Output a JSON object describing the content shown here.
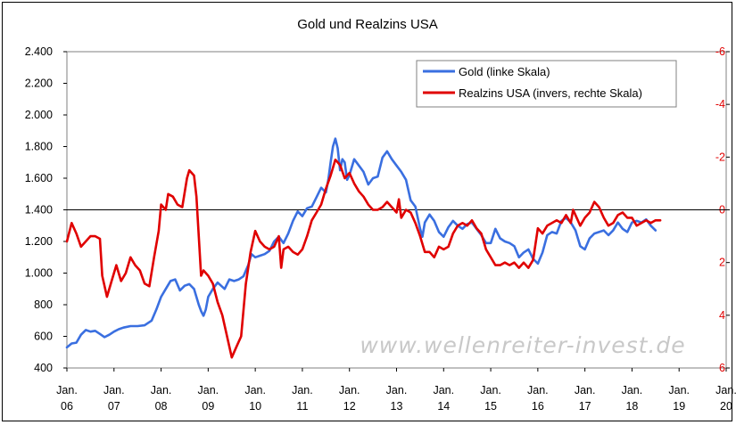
{
  "chart_data": {
    "type": "line",
    "title": "Gold und Realzins USA",
    "watermark": "www.wellenreiter-invest.de",
    "x_ticks": [
      {
        "top": "Jan.",
        "bottom": "06",
        "year": 2006
      },
      {
        "top": "Jan.",
        "bottom": "07",
        "year": 2007
      },
      {
        "top": "Jan.",
        "bottom": "08",
        "year": 2008
      },
      {
        "top": "Jan.",
        "bottom": "09",
        "year": 2009
      },
      {
        "top": "Jan.",
        "bottom": "10",
        "year": 2010
      },
      {
        "top": "Jan.",
        "bottom": "11",
        "year": 2011
      },
      {
        "top": "Jan.",
        "bottom": "12",
        "year": 2012
      },
      {
        "top": "Jan.",
        "bottom": "13",
        "year": 2013
      },
      {
        "top": "Jan.",
        "bottom": "14",
        "year": 2014
      },
      {
        "top": "Jan.",
        "bottom": "15",
        "year": 2015
      },
      {
        "top": "Jan.",
        "bottom": "16",
        "year": 2016
      },
      {
        "top": "Jan.",
        "bottom": "17",
        "year": 2017
      },
      {
        "top": "Jan.",
        "bottom": "18",
        "year": 2018
      },
      {
        "top": "Jan.",
        "bottom": "19",
        "year": 2019
      },
      {
        "top": "Jan.",
        "bottom": "20",
        "year": 2020
      }
    ],
    "x_range": [
      2006,
      2020
    ],
    "left_axis": {
      "range": [
        400,
        2400
      ],
      "ticks": [
        400,
        600,
        800,
        1000,
        1200,
        1400,
        1600,
        1800,
        2000,
        2200,
        2400
      ],
      "tick_labels": [
        "400",
        "600",
        "800",
        "1.000",
        "1.200",
        "1.400",
        "1.600",
        "1.800",
        "2.000",
        "2.200",
        "2.400"
      ]
    },
    "right_axis": {
      "inverted": true,
      "range": [
        6,
        -6
      ],
      "ticks": [
        6,
        4,
        2,
        0,
        -2,
        -4,
        -6
      ],
      "tick_labels": [
        "6",
        "4",
        "2",
        "0",
        "-2",
        "-4",
        "-6"
      ],
      "color": "#e00000"
    },
    "zero_line_right": 0,
    "grid": false,
    "legend_position": "top-right",
    "series": [
      {
        "name": "Gold (linke Skala)",
        "axis": "left",
        "color": "#3a6fe0",
        "points": [
          [
            2006.0,
            530
          ],
          [
            2006.1,
            555
          ],
          [
            2006.2,
            560
          ],
          [
            2006.3,
            610
          ],
          [
            2006.4,
            640
          ],
          [
            2006.5,
            630
          ],
          [
            2006.6,
            635
          ],
          [
            2006.7,
            615
          ],
          [
            2006.8,
            595
          ],
          [
            2006.9,
            610
          ],
          [
            2007.0,
            630
          ],
          [
            2007.1,
            645
          ],
          [
            2007.2,
            655
          ],
          [
            2007.35,
            665
          ],
          [
            2007.5,
            665
          ],
          [
            2007.65,
            670
          ],
          [
            2007.8,
            700
          ],
          [
            2007.9,
            770
          ],
          [
            2008.0,
            850
          ],
          [
            2008.1,
            900
          ],
          [
            2008.2,
            950
          ],
          [
            2008.3,
            960
          ],
          [
            2008.4,
            890
          ],
          [
            2008.5,
            920
          ],
          [
            2008.6,
            930
          ],
          [
            2008.7,
            900
          ],
          [
            2008.8,
            800
          ],
          [
            2008.85,
            760
          ],
          [
            2008.9,
            730
          ],
          [
            2008.95,
            770
          ],
          [
            2009.0,
            850
          ],
          [
            2009.1,
            900
          ],
          [
            2009.2,
            940
          ],
          [
            2009.35,
            900
          ],
          [
            2009.45,
            960
          ],
          [
            2009.55,
            950
          ],
          [
            2009.65,
            960
          ],
          [
            2009.75,
            980
          ],
          [
            2009.85,
            1050
          ],
          [
            2009.92,
            1120
          ],
          [
            2010.0,
            1100
          ],
          [
            2010.1,
            1110
          ],
          [
            2010.2,
            1120
          ],
          [
            2010.3,
            1140
          ],
          [
            2010.4,
            1200
          ],
          [
            2010.5,
            1230
          ],
          [
            2010.6,
            1190
          ],
          [
            2010.7,
            1250
          ],
          [
            2010.8,
            1330
          ],
          [
            2010.9,
            1390
          ],
          [
            2011.0,
            1360
          ],
          [
            2011.1,
            1410
          ],
          [
            2011.2,
            1420
          ],
          [
            2011.3,
            1480
          ],
          [
            2011.4,
            1540
          ],
          [
            2011.5,
            1510
          ],
          [
            2011.55,
            1590
          ],
          [
            2011.6,
            1700
          ],
          [
            2011.65,
            1800
          ],
          [
            2011.7,
            1850
          ],
          [
            2011.75,
            1790
          ],
          [
            2011.8,
            1650
          ],
          [
            2011.85,
            1720
          ],
          [
            2011.9,
            1700
          ],
          [
            2011.95,
            1590
          ],
          [
            2012.0,
            1620
          ],
          [
            2012.1,
            1720
          ],
          [
            2012.2,
            1680
          ],
          [
            2012.3,
            1640
          ],
          [
            2012.4,
            1560
          ],
          [
            2012.5,
            1600
          ],
          [
            2012.6,
            1610
          ],
          [
            2012.7,
            1730
          ],
          [
            2012.8,
            1770
          ],
          [
            2012.9,
            1720
          ],
          [
            2013.0,
            1680
          ],
          [
            2013.1,
            1640
          ],
          [
            2013.2,
            1590
          ],
          [
            2013.3,
            1460
          ],
          [
            2013.4,
            1420
          ],
          [
            2013.5,
            1280
          ],
          [
            2013.55,
            1230
          ],
          [
            2013.6,
            1320
          ],
          [
            2013.7,
            1370
          ],
          [
            2013.8,
            1330
          ],
          [
            2013.9,
            1260
          ],
          [
            2014.0,
            1230
          ],
          [
            2014.1,
            1290
          ],
          [
            2014.2,
            1330
          ],
          [
            2014.3,
            1300
          ],
          [
            2014.4,
            1280
          ],
          [
            2014.5,
            1310
          ],
          [
            2014.6,
            1320
          ],
          [
            2014.7,
            1280
          ],
          [
            2014.8,
            1240
          ],
          [
            2014.9,
            1190
          ],
          [
            2015.0,
            1190
          ],
          [
            2015.1,
            1280
          ],
          [
            2015.2,
            1220
          ],
          [
            2015.3,
            1200
          ],
          [
            2015.4,
            1190
          ],
          [
            2015.5,
            1170
          ],
          [
            2015.6,
            1100
          ],
          [
            2015.7,
            1130
          ],
          [
            2015.8,
            1150
          ],
          [
            2015.9,
            1090
          ],
          [
            2016.0,
            1060
          ],
          [
            2016.1,
            1130
          ],
          [
            2016.2,
            1240
          ],
          [
            2016.3,
            1260
          ],
          [
            2016.4,
            1250
          ],
          [
            2016.5,
            1330
          ],
          [
            2016.6,
            1350
          ],
          [
            2016.7,
            1320
          ],
          [
            2016.8,
            1270
          ],
          [
            2016.9,
            1170
          ],
          [
            2017.0,
            1150
          ],
          [
            2017.1,
            1220
          ],
          [
            2017.2,
            1250
          ],
          [
            2017.3,
            1260
          ],
          [
            2017.4,
            1270
          ],
          [
            2017.5,
            1240
          ],
          [
            2017.6,
            1270
          ],
          [
            2017.7,
            1320
          ],
          [
            2017.8,
            1280
          ],
          [
            2017.9,
            1260
          ],
          [
            2018.0,
            1320
          ],
          [
            2018.1,
            1330
          ],
          [
            2018.2,
            1320
          ],
          [
            2018.3,
            1340
          ],
          [
            2018.4,
            1300
          ],
          [
            2018.5,
            1270
          ]
        ]
      },
      {
        "name": "Realzins USA (invers, rechte Skala)",
        "axis": "right",
        "color": "#e00000",
        "points": [
          [
            2006.0,
            1.2
          ],
          [
            2006.1,
            0.5
          ],
          [
            2006.2,
            0.9
          ],
          [
            2006.3,
            1.4
          ],
          [
            2006.4,
            1.2
          ],
          [
            2006.5,
            1.0
          ],
          [
            2006.6,
            1.0
          ],
          [
            2006.7,
            1.1
          ],
          [
            2006.75,
            2.5
          ],
          [
            2006.85,
            3.3
          ],
          [
            2006.95,
            2.7
          ],
          [
            2007.05,
            2.1
          ],
          [
            2007.15,
            2.7
          ],
          [
            2007.25,
            2.4
          ],
          [
            2007.35,
            1.8
          ],
          [
            2007.45,
            2.1
          ],
          [
            2007.55,
            2.3
          ],
          [
            2007.65,
            2.8
          ],
          [
            2007.75,
            2.9
          ],
          [
            2007.85,
            1.8
          ],
          [
            2007.95,
            0.8
          ],
          [
            2008.0,
            -0.2
          ],
          [
            2008.1,
            0.0
          ],
          [
            2008.15,
            -0.6
          ],
          [
            2008.25,
            -0.5
          ],
          [
            2008.35,
            -0.2
          ],
          [
            2008.45,
            -0.1
          ],
          [
            2008.55,
            -1.2
          ],
          [
            2008.6,
            -1.5
          ],
          [
            2008.7,
            -1.3
          ],
          [
            2008.75,
            -0.5
          ],
          [
            2008.8,
            1.0
          ],
          [
            2008.85,
            2.5
          ],
          [
            2008.9,
            2.3
          ],
          [
            2009.0,
            2.5
          ],
          [
            2009.1,
            2.8
          ],
          [
            2009.2,
            3.5
          ],
          [
            2009.3,
            4.0
          ],
          [
            2009.4,
            4.8
          ],
          [
            2009.5,
            5.6
          ],
          [
            2009.6,
            5.2
          ],
          [
            2009.7,
            4.8
          ],
          [
            2009.8,
            2.8
          ],
          [
            2009.9,
            1.6
          ],
          [
            2010.0,
            0.8
          ],
          [
            2010.1,
            1.2
          ],
          [
            2010.2,
            1.4
          ],
          [
            2010.3,
            1.5
          ],
          [
            2010.4,
            1.4
          ],
          [
            2010.5,
            1.0
          ],
          [
            2010.55,
            2.2
          ],
          [
            2010.6,
            1.5
          ],
          [
            2010.7,
            1.4
          ],
          [
            2010.8,
            1.6
          ],
          [
            2010.9,
            1.7
          ],
          [
            2011.0,
            1.5
          ],
          [
            2011.1,
            1.0
          ],
          [
            2011.2,
            0.4
          ],
          [
            2011.3,
            0.1
          ],
          [
            2011.4,
            -0.2
          ],
          [
            2011.5,
            -0.8
          ],
          [
            2011.6,
            -1.3
          ],
          [
            2011.7,
            -1.9
          ],
          [
            2011.8,
            -1.7
          ],
          [
            2011.9,
            -1.2
          ],
          [
            2012.0,
            -1.4
          ],
          [
            2012.1,
            -1.0
          ],
          [
            2012.2,
            -0.7
          ],
          [
            2012.3,
            -0.5
          ],
          [
            2012.4,
            -0.2
          ],
          [
            2012.5,
            0.0
          ],
          [
            2012.6,
            0.0
          ],
          [
            2012.7,
            -0.1
          ],
          [
            2012.8,
            -0.3
          ],
          [
            2012.9,
            -0.1
          ],
          [
            2013.0,
            0.1
          ],
          [
            2013.05,
            -0.4
          ],
          [
            2013.1,
            0.3
          ],
          [
            2013.2,
            0.0
          ],
          [
            2013.3,
            0.1
          ],
          [
            2013.4,
            0.5
          ],
          [
            2013.5,
            1.0
          ],
          [
            2013.6,
            1.6
          ],
          [
            2013.7,
            1.6
          ],
          [
            2013.8,
            1.8
          ],
          [
            2013.85,
            1.6
          ],
          [
            2013.9,
            1.4
          ],
          [
            2014.0,
            1.5
          ],
          [
            2014.1,
            1.4
          ],
          [
            2014.2,
            0.9
          ],
          [
            2014.3,
            0.6
          ],
          [
            2014.4,
            0.5
          ],
          [
            2014.5,
            0.6
          ],
          [
            2014.6,
            0.4
          ],
          [
            2014.7,
            0.7
          ],
          [
            2014.8,
            0.9
          ],
          [
            2014.9,
            1.5
          ],
          [
            2015.0,
            1.8
          ],
          [
            2015.1,
            2.1
          ],
          [
            2015.2,
            2.1
          ],
          [
            2015.3,
            2.0
          ],
          [
            2015.4,
            2.1
          ],
          [
            2015.5,
            2.0
          ],
          [
            2015.6,
            2.2
          ],
          [
            2015.7,
            2.0
          ],
          [
            2015.8,
            2.2
          ],
          [
            2015.9,
            1.9
          ],
          [
            2016.0,
            0.7
          ],
          [
            2016.1,
            0.9
          ],
          [
            2016.2,
            0.6
          ],
          [
            2016.3,
            0.5
          ],
          [
            2016.4,
            0.4
          ],
          [
            2016.5,
            0.5
          ],
          [
            2016.6,
            0.2
          ],
          [
            2016.7,
            0.5
          ],
          [
            2016.75,
            0.0
          ],
          [
            2016.8,
            0.2
          ],
          [
            2016.9,
            0.6
          ],
          [
            2017.0,
            0.3
          ],
          [
            2017.1,
            0.1
          ],
          [
            2017.2,
            -0.3
          ],
          [
            2017.3,
            -0.1
          ],
          [
            2017.4,
            0.3
          ],
          [
            2017.5,
            0.6
          ],
          [
            2017.6,
            0.5
          ],
          [
            2017.7,
            0.2
          ],
          [
            2017.8,
            0.1
          ],
          [
            2017.9,
            0.3
          ],
          [
            2018.0,
            0.3
          ],
          [
            2018.1,
            0.6
          ],
          [
            2018.2,
            0.5
          ],
          [
            2018.3,
            0.4
          ],
          [
            2018.4,
            0.5
          ],
          [
            2018.5,
            0.4
          ],
          [
            2018.6,
            0.4
          ]
        ]
      }
    ]
  }
}
